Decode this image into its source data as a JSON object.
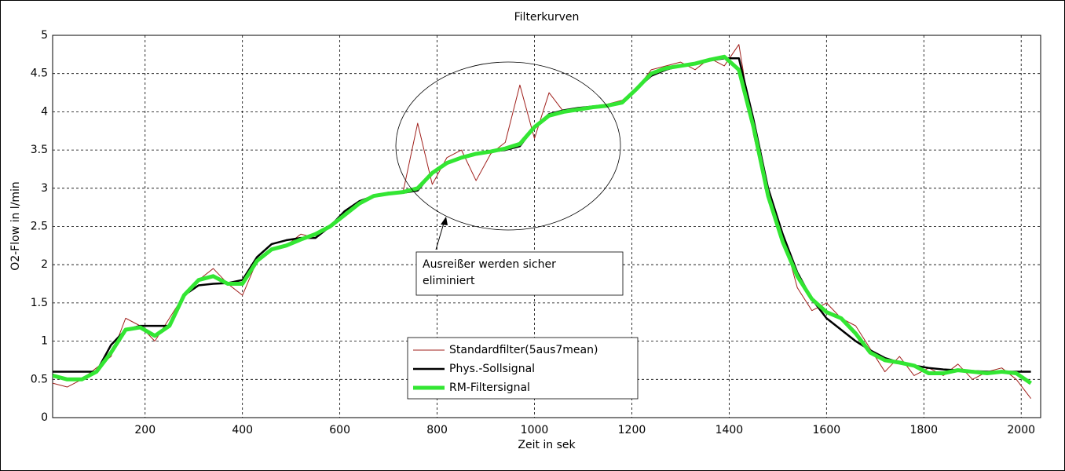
{
  "chart_data": {
    "type": "line",
    "title": "Filterkurven",
    "x_label": "Zeit in sek",
    "y_label": "O2-Flow in l/min",
    "annotation": [
      "Ausreißer werden sicher",
      "eliminiert"
    ],
    "xlim": [
      10,
      2040
    ],
    "ylim": [
      0,
      5
    ],
    "xticks": [
      200,
      400,
      600,
      800,
      1000,
      1200,
      1400,
      1600,
      1800,
      2000
    ],
    "yticks": [
      0,
      0.5,
      1,
      1.5,
      2,
      2.5,
      3,
      3.5,
      4,
      4.5,
      5
    ],
    "grid": true,
    "legend": "lower center",
    "x": [
      10,
      40,
      70,
      100,
      130,
      160,
      190,
      220,
      250,
      280,
      310,
      340,
      370,
      400,
      430,
      460,
      490,
      520,
      550,
      580,
      610,
      640,
      670,
      700,
      730,
      760,
      790,
      820,
      850,
      880,
      910,
      940,
      970,
      1000,
      1030,
      1060,
      1090,
      1120,
      1150,
      1180,
      1210,
      1240,
      1270,
      1300,
      1330,
      1360,
      1390,
      1420,
      1450,
      1480,
      1510,
      1540,
      1570,
      1600,
      1630,
      1660,
      1690,
      1720,
      1750,
      1780,
      1810,
      1840,
      1870,
      1900,
      1930,
      1960,
      1990,
      2020
    ],
    "series": [
      {
        "name": "Standardfilter(5aus7mean)",
        "color": "#a0201c",
        "width": 1,
        "values": [
          0.45,
          0.4,
          0.5,
          0.65,
          0.8,
          1.3,
          1.2,
          1.0,
          1.3,
          1.6,
          1.8,
          1.95,
          1.75,
          1.6,
          2.05,
          2.2,
          2.25,
          2.4,
          2.35,
          2.5,
          2.65,
          2.8,
          2.9,
          2.95,
          2.95,
          3.85,
          3.05,
          3.4,
          3.5,
          3.1,
          3.45,
          3.6,
          4.35,
          3.65,
          4.25,
          4.0,
          4.05,
          4.05,
          4.1,
          4.15,
          4.3,
          4.55,
          4.6,
          4.65,
          4.55,
          4.7,
          4.6,
          4.88,
          3.7,
          2.85,
          2.4,
          1.7,
          1.4,
          1.5,
          1.3,
          1.2,
          0.9,
          0.6,
          0.8,
          0.55,
          0.65,
          0.55,
          0.7,
          0.5,
          0.6,
          0.65,
          0.5,
          0.25
        ]
      },
      {
        "name": "Phys.-Sollsignal",
        "color": "#000000",
        "width": 2.5,
        "values": [
          0.6,
          0.6,
          0.6,
          0.6,
          0.95,
          1.15,
          1.2,
          1.2,
          1.2,
          1.6,
          1.73,
          1.75,
          1.76,
          1.8,
          2.1,
          2.27,
          2.32,
          2.35,
          2.35,
          2.5,
          2.7,
          2.83,
          2.9,
          2.93,
          2.94,
          2.97,
          3.2,
          3.33,
          3.4,
          3.45,
          3.48,
          3.5,
          3.55,
          3.8,
          3.97,
          4.02,
          4.05,
          4.07,
          4.09,
          4.12,
          4.3,
          4.47,
          4.55,
          4.6,
          4.63,
          4.67,
          4.7,
          4.7,
          3.9,
          3.0,
          2.4,
          1.9,
          1.55,
          1.3,
          1.15,
          1.0,
          0.88,
          0.78,
          0.72,
          0.68,
          0.65,
          0.63,
          0.62,
          0.61,
          0.6,
          0.6,
          0.6,
          0.6
        ]
      },
      {
        "name": "RM-Filtersignal",
        "color": "#33e633",
        "width": 5,
        "values": [
          0.55,
          0.5,
          0.5,
          0.6,
          0.85,
          1.15,
          1.18,
          1.07,
          1.2,
          1.6,
          1.8,
          1.85,
          1.75,
          1.75,
          2.05,
          2.2,
          2.25,
          2.33,
          2.4,
          2.5,
          2.65,
          2.8,
          2.9,
          2.93,
          2.95,
          3.0,
          3.2,
          3.33,
          3.4,
          3.45,
          3.48,
          3.52,
          3.58,
          3.8,
          3.95,
          4.0,
          4.03,
          4.06,
          4.08,
          4.12,
          4.3,
          4.5,
          4.57,
          4.6,
          4.63,
          4.68,
          4.72,
          4.55,
          3.8,
          2.9,
          2.3,
          1.85,
          1.55,
          1.38,
          1.3,
          1.1,
          0.85,
          0.75,
          0.72,
          0.68,
          0.58,
          0.58,
          0.62,
          0.6,
          0.58,
          0.6,
          0.58,
          0.45
        ]
      }
    ]
  }
}
